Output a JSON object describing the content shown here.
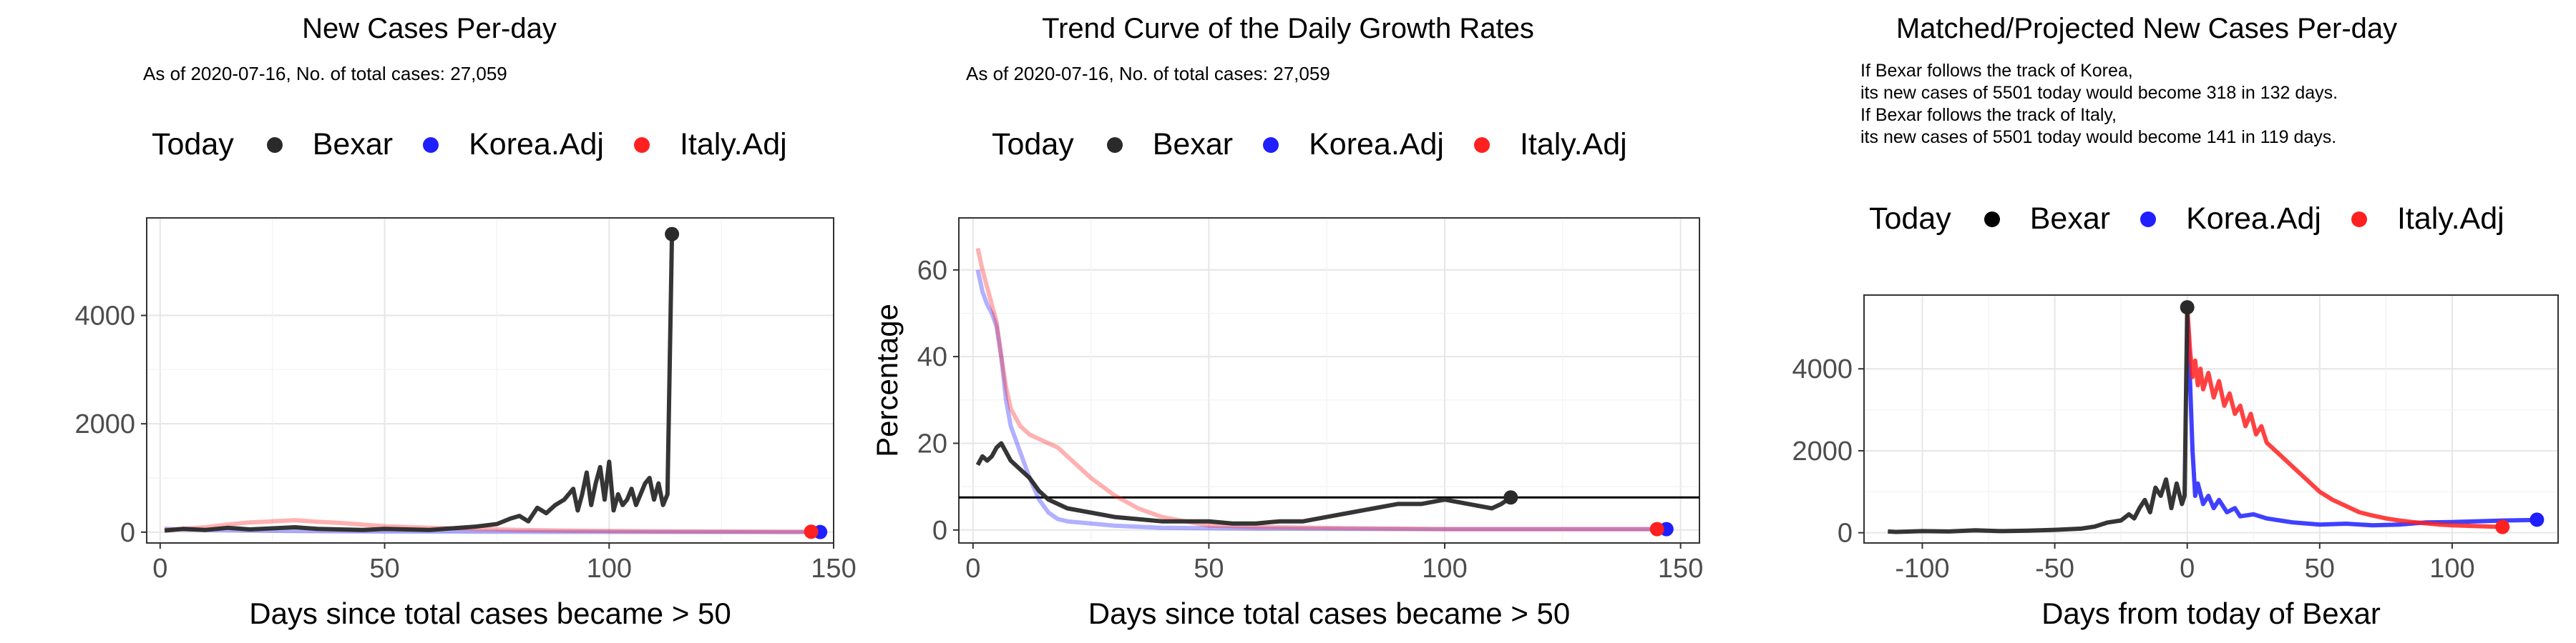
{
  "colors": {
    "bexar": "#2a2a2a",
    "korea": "#1f1fff",
    "italy": "#ff2020",
    "hline": "#000000"
  },
  "panels": [
    {
      "title": "New Cases Per-day",
      "subtitle": "As of 2020-07-16, No. of total cases: 27,059",
      "legend": {
        "title": "Today",
        "items": [
          "Bexar",
          "Korea.Adj",
          "Italy.Adj"
        ]
      }
    },
    {
      "title": "Trend Curve of the Daily Growth Rates",
      "subtitle": "As of 2020-07-16, No. of total cases: 27,059",
      "legend": {
        "title": "Today",
        "items": [
          "Bexar",
          "Korea.Adj",
          "Italy.Adj"
        ]
      }
    },
    {
      "title": "Matched/Projected New Cases Per-day",
      "note_lines": [
        "If Bexar follows the track of Korea,",
        "its new cases of 5501 today would become 318 in 132 days.",
        "If Bexar follows the track of Italy,",
        "its new cases of 5501 today would become 141 in 119 days."
      ],
      "legend": {
        "title": "Today",
        "items": [
          "Bexar",
          "Korea.Adj",
          "Italy.Adj"
        ]
      }
    }
  ],
  "chart_data": [
    {
      "type": "line",
      "title": "New Cases Per-day",
      "xlabel": "Days since total cases became > 50",
      "ylabel": "",
      "xlim": [
        -3,
        150
      ],
      "ylim": [
        -200,
        5800
      ],
      "xticks": [
        0,
        50,
        100,
        150
      ],
      "yticks": [
        0,
        2000,
        4000
      ],
      "grid": true,
      "series": [
        {
          "name": "Bexar",
          "color_key": "bexar",
          "x": [
            1,
            5,
            10,
            15,
            20,
            25,
            30,
            35,
            40,
            45,
            50,
            55,
            60,
            65,
            70,
            75,
            78,
            80,
            82,
            84,
            86,
            88,
            90,
            92,
            93,
            94,
            95,
            96,
            97,
            98,
            99,
            100,
            101,
            102,
            103,
            104,
            105,
            106,
            107,
            108,
            109,
            110,
            111,
            112,
            113,
            114
          ],
          "y": [
            30,
            60,
            40,
            80,
            50,
            70,
            90,
            60,
            50,
            40,
            60,
            50,
            40,
            70,
            100,
            150,
            250,
            300,
            200,
            450,
            350,
            500,
            600,
            800,
            400,
            700,
            1100,
            500,
            900,
            1200,
            600,
            1300,
            400,
            700,
            500,
            600,
            800,
            500,
            700,
            900,
            1000,
            600,
            900,
            500,
            700,
            5501
          ],
          "today": [
            114,
            5501
          ]
        },
        {
          "name": "Korea.Adj",
          "color_key": "korea",
          "x": [
            1,
            5,
            10,
            20,
            30,
            40,
            50,
            60,
            70,
            80,
            90,
            100,
            110,
            120,
            130,
            140,
            147
          ],
          "y": [
            60,
            50,
            40,
            30,
            20,
            15,
            10,
            10,
            8,
            6,
            5,
            5,
            4,
            3,
            3,
            2,
            2
          ],
          "today": [
            147,
            2
          ]
        },
        {
          "name": "Italy.Adj",
          "color_key": "italy",
          "x": [
            1,
            5,
            10,
            15,
            20,
            25,
            30,
            35,
            40,
            45,
            50,
            60,
            70,
            80,
            90,
            100,
            110,
            120,
            130,
            140,
            145
          ],
          "y": [
            40,
            60,
            90,
            140,
            180,
            200,
            220,
            190,
            170,
            140,
            110,
            80,
            60,
            40,
            30,
            20,
            15,
            12,
            10,
            8,
            8
          ],
          "today": [
            145,
            8
          ]
        }
      ]
    },
    {
      "type": "line",
      "title": "Trend Curve of the Daily Growth Rates",
      "xlabel": "Days since total cases became > 50",
      "ylabel": "Percentage",
      "xlim": [
        -3,
        154
      ],
      "ylim": [
        -3,
        72
      ],
      "xticks": [
        0,
        50,
        100,
        150
      ],
      "yticks": [
        0,
        20,
        40,
        60
      ],
      "grid": true,
      "hline": 7.5,
      "series": [
        {
          "name": "Bexar",
          "color_key": "bexar",
          "x": [
            1,
            2,
            3,
            4,
            5,
            6,
            7,
            8,
            9,
            10,
            12,
            14,
            16,
            18,
            20,
            25,
            30,
            35,
            40,
            45,
            50,
            55,
            60,
            65,
            70,
            75,
            80,
            85,
            90,
            95,
            100,
            105,
            110,
            112,
            114
          ],
          "y": [
            15,
            17,
            16,
            17,
            19,
            20,
            18,
            16,
            15,
            14,
            12,
            9,
            7,
            6,
            5,
            4,
            3,
            2.5,
            2,
            2,
            2,
            1.5,
            1.5,
            2,
            2,
            3,
            4,
            5,
            6,
            6,
            7,
            6,
            5,
            6,
            7.5
          ],
          "today": [
            114,
            7.5
          ]
        },
        {
          "name": "Korea.Adj",
          "color_key": "korea",
          "x": [
            1,
            2,
            3,
            4,
            5,
            6,
            7,
            8,
            10,
            12,
            14,
            16,
            18,
            20,
            25,
            30,
            40,
            60,
            100,
            147
          ],
          "y": [
            60,
            55,
            52,
            50,
            47,
            40,
            30,
            24,
            18,
            12,
            7,
            4,
            2.5,
            2,
            1.5,
            1,
            0.5,
            0.3,
            0.2,
            0.2
          ],
          "today": [
            147,
            0.2
          ]
        },
        {
          "name": "Italy.Adj",
          "color_key": "italy",
          "x": [
            1,
            2,
            3,
            4,
            5,
            6,
            7,
            8,
            10,
            12,
            14,
            16,
            18,
            20,
            22,
            25,
            30,
            35,
            40,
            45,
            50,
            60,
            80,
            100,
            145
          ],
          "y": [
            65,
            60,
            56,
            52,
            48,
            40,
            33,
            28,
            24,
            22,
            21,
            20,
            19,
            17,
            15,
            12,
            8,
            5,
            3,
            2,
            1,
            0.7,
            0.4,
            0.2,
            0.2
          ],
          "today": [
            145,
            0.2
          ]
        }
      ]
    },
    {
      "type": "line",
      "title": "Matched/Projected New Cases Per-day",
      "xlabel": "Days from today of Bexar",
      "ylabel": "",
      "xlim": [
        -122,
        140
      ],
      "ylim": [
        -250,
        5800
      ],
      "xticks": [
        -100,
        -50,
        0,
        50,
        100
      ],
      "yticks": [
        0,
        2000,
        4000
      ],
      "grid": true,
      "series": [
        {
          "name": "Bexar",
          "color_key": "bexar",
          "x": [
            -113,
            -110,
            -100,
            -90,
            -80,
            -70,
            -60,
            -50,
            -40,
            -35,
            -30,
            -25,
            -22,
            -20,
            -18,
            -16,
            -14,
            -12,
            -10,
            -8,
            -6,
            -4,
            -2,
            -1,
            0
          ],
          "y": [
            30,
            20,
            40,
            30,
            60,
            40,
            50,
            70,
            100,
            150,
            250,
            300,
            450,
            350,
            600,
            800,
            500,
            1100,
            900,
            1300,
            600,
            1200,
            700,
            900,
            5501
          ],
          "today": [
            0,
            5501
          ]
        },
        {
          "name": "Korea.Adj",
          "color_key": "korea",
          "x": [
            0,
            1,
            2,
            3,
            4,
            6,
            8,
            10,
            12,
            15,
            18,
            20,
            25,
            30,
            35,
            40,
            50,
            60,
            70,
            80,
            90,
            100,
            110,
            120,
            130,
            132
          ],
          "y": [
            5501,
            3800,
            2000,
            900,
            1200,
            700,
            900,
            600,
            800,
            500,
            600,
            400,
            450,
            350,
            300,
            250,
            200,
            220,
            180,
            200,
            250,
            260,
            280,
            300,
            310,
            318
          ],
          "today": [
            132,
            318
          ]
        },
        {
          "name": "Italy.Adj",
          "color_key": "italy",
          "x": [
            0,
            1,
            2,
            3,
            4,
            5,
            6,
            8,
            10,
            12,
            14,
            16,
            18,
            20,
            22,
            24,
            26,
            28,
            30,
            35,
            40,
            45,
            50,
            55,
            60,
            65,
            70,
            75,
            80,
            85,
            90,
            95,
            100,
            105,
            110,
            115,
            119
          ],
          "y": [
            5501,
            4500,
            3800,
            4200,
            3600,
            4000,
            3500,
            3900,
            3300,
            3700,
            3100,
            3400,
            2900,
            3100,
            2600,
            2900,
            2400,
            2600,
            2200,
            1900,
            1600,
            1300,
            1000,
            800,
            650,
            500,
            420,
            350,
            300,
            260,
            230,
            200,
            180,
            170,
            160,
            150,
            141
          ],
          "today": [
            119,
            141
          ]
        }
      ]
    }
  ]
}
